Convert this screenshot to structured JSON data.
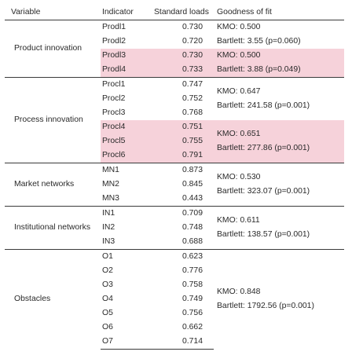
{
  "header": {
    "variable": "Variable",
    "indicator": "Indicator",
    "loads": "Standard loads",
    "fit": "Goodness of fit"
  },
  "groups": [
    {
      "variable": "Product innovation",
      "rows": [
        {
          "ind": "Prodl1",
          "load": "0.730"
        },
        {
          "ind": "Prodl2",
          "load": "0.720"
        },
        {
          "ind": "Prodl3",
          "load": "0.730"
        },
        {
          "ind": "Prodl4",
          "load": "0.733"
        }
      ],
      "fits": [
        {
          "start": 0,
          "span": 2,
          "highlight": false,
          "kmo": "KMO: 0.500",
          "bartlett": "Bartlett: 3.55 (p=0.060)"
        },
        {
          "start": 2,
          "span": 2,
          "highlight": true,
          "kmo": "KMO: 0.500",
          "bartlett": "Bartlett: 3.88 (p=0.049)"
        }
      ]
    },
    {
      "variable": "Process innovation",
      "rows": [
        {
          "ind": "Procl1",
          "load": "0.747"
        },
        {
          "ind": "Procl2",
          "load": "0.752"
        },
        {
          "ind": "Procl3",
          "load": "0.768"
        },
        {
          "ind": "Procl4",
          "load": "0.751"
        },
        {
          "ind": "Procl5",
          "load": "0.755"
        },
        {
          "ind": "Procl6",
          "load": "0.791"
        }
      ],
      "fits": [
        {
          "start": 0,
          "span": 3,
          "highlight": false,
          "kmo": "KMO: 0.647",
          "bartlett": "Bartlett: 241.58 (p=0.001)"
        },
        {
          "start": 3,
          "span": 3,
          "highlight": true,
          "kmo": "KMO: 0.651",
          "bartlett": "Bartlett: 277.86 (p=0.001)"
        }
      ]
    },
    {
      "variable": "Market networks",
      "rows": [
        {
          "ind": "MN1",
          "load": "0.873"
        },
        {
          "ind": "MN2",
          "load": "0.845"
        },
        {
          "ind": "MN3",
          "load": "0.443"
        }
      ],
      "fits": [
        {
          "start": 0,
          "span": 3,
          "highlight": false,
          "kmo": "KMO: 0.530",
          "bartlett": "Bartlett: 323.07 (p=0.001)"
        }
      ]
    },
    {
      "variable": "Institutional networks",
      "rows": [
        {
          "ind": "IN1",
          "load": "0.709"
        },
        {
          "ind": "IN2",
          "load": "0.748"
        },
        {
          "ind": "IN3",
          "load": "0.688"
        }
      ],
      "fits": [
        {
          "start": 0,
          "span": 3,
          "highlight": false,
          "kmo": "KMO: 0.611",
          "bartlett": "Bartlett: 138.57 (p=0.001)"
        }
      ]
    },
    {
      "variable": "Obstacles",
      "rows": [
        {
          "ind": "O1",
          "load": "0.623"
        },
        {
          "ind": "O2",
          "load": "0.776"
        },
        {
          "ind": "O3",
          "load": "0.758"
        },
        {
          "ind": "O4",
          "load": "0.749"
        },
        {
          "ind": "O5",
          "load": "0.756"
        },
        {
          "ind": "O6",
          "load": "0.662"
        },
        {
          "ind": "O7",
          "load": "0.714"
        }
      ],
      "fits": [
        {
          "start": 0,
          "span": 7,
          "highlight": false,
          "kmo": "KMO: 0.848",
          "bartlett": "Bartlett: 1792.56 (p=0.001)"
        }
      ]
    }
  ],
  "colors": {
    "highlight": "#f6d2da",
    "rule": "#3a3a3a",
    "text": "#2a2a2a"
  }
}
